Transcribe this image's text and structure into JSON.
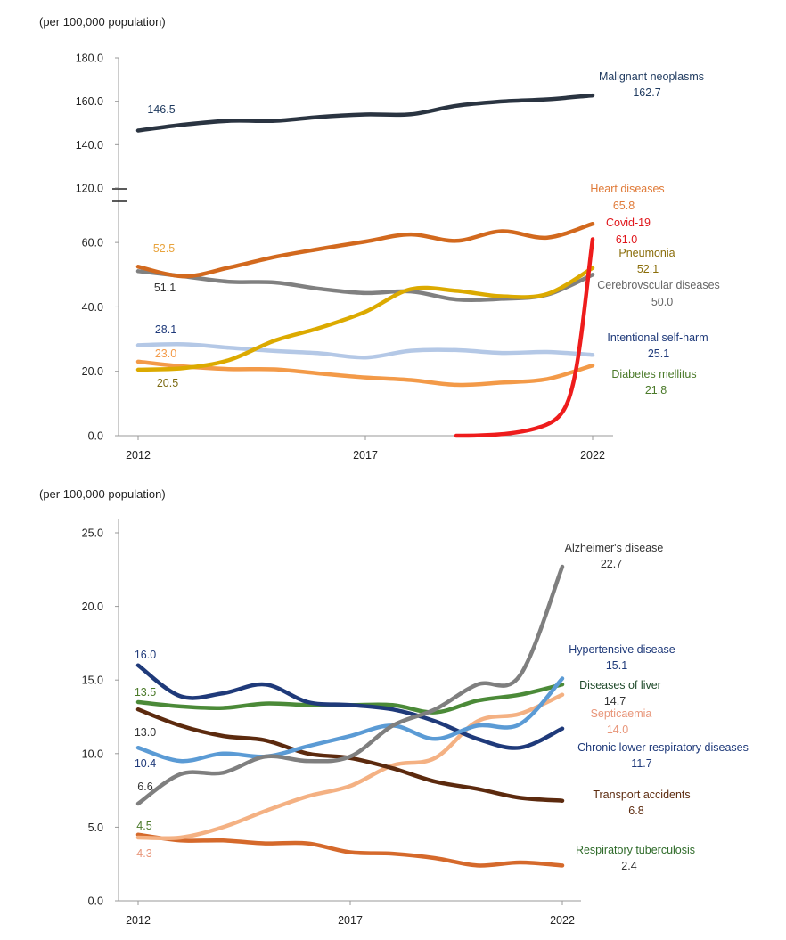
{
  "chart_data": [
    {
      "type": "line",
      "title": "",
      "ylabel": "(per 100,000 population)",
      "xlabel": "",
      "x": [
        2012,
        2013,
        2014,
        2015,
        2016,
        2017,
        2018,
        2019,
        2020,
        2021,
        2022
      ],
      "x_ticks": [
        "2012",
        "2017",
        "2022"
      ],
      "y_ticks": [
        "0.0",
        "20.0",
        "40.0",
        "60.0",
        "120.0",
        "140.0",
        "160.0",
        "180.0"
      ],
      "ylim": [
        0,
        180
      ],
      "axis_break": [
        70,
        120
      ],
      "series": [
        {
          "name": "Malignant neoplasms",
          "color": "#2a3441",
          "values": [
            146.5,
            149.2,
            151.0,
            151.0,
            152.8,
            153.9,
            154.0,
            157.9,
            159.9,
            160.9,
            162.7
          ],
          "start_label": "146.5",
          "end_label": "162.7"
        },
        {
          "name": "Heart diseases",
          "color": "#d2691e",
          "values": [
            52.5,
            49.5,
            52.2,
            55.5,
            58.0,
            60.3,
            62.5,
            60.5,
            63.5,
            61.5,
            65.8
          ],
          "start_label": "52.5",
          "end_label": "65.8"
        },
        {
          "name": "Covid-19",
          "color": "#ee1c1c",
          "values": [
            null,
            null,
            null,
            null,
            null,
            null,
            null,
            0.0,
            1.0,
            10.0,
            61.0
          ],
          "start_label": "",
          "end_label": "61.0"
        },
        {
          "name": "Pneumonia",
          "color": "#dcaa00",
          "values": [
            20.5,
            21.0,
            23.5,
            29.5,
            33.5,
            38.5,
            45.5,
            45.0,
            43.3,
            44.0,
            52.1
          ],
          "start_label": "20.5",
          "end_label": "52.1"
        },
        {
          "name": "Cerebrovscular diseases",
          "color": "#808080",
          "values": [
            51.1,
            49.5,
            47.8,
            47.6,
            45.6,
            44.3,
            44.8,
            42.3,
            42.5,
            43.8,
            50.0
          ],
          "start_label": "51.1",
          "end_label": "50.0"
        },
        {
          "name": "Intentional self-harm",
          "color": "#b4c8e6",
          "values": [
            28.1,
            28.4,
            27.3,
            26.3,
            25.6,
            24.3,
            26.4,
            26.6,
            25.7,
            26.0,
            25.1
          ],
          "start_label": "28.1",
          "end_label": "25.1"
        },
        {
          "name": "Diabetes mellitus",
          "color": "#f39a48",
          "values": [
            23.0,
            21.5,
            20.7,
            20.6,
            19.3,
            18.1,
            17.3,
            15.8,
            16.5,
            17.6,
            21.8
          ],
          "start_label": "23.0",
          "end_label": "21.8"
        }
      ]
    },
    {
      "type": "line",
      "title": "",
      "ylabel": "(per 100,000 population)",
      "xlabel": "",
      "x": [
        2012,
        2013,
        2014,
        2015,
        2016,
        2017,
        2018,
        2019,
        2020,
        2021,
        2022
      ],
      "x_ticks": [
        "2012",
        "2017",
        "2022"
      ],
      "y_ticks": [
        "0.0",
        "5.0",
        "10.0",
        "15.0",
        "20.0",
        "25.0"
      ],
      "ylim": [
        0,
        25
      ],
      "series": [
        {
          "name": "Alzheimer's disease",
          "color": "#7f7f7f",
          "values": [
            6.6,
            8.6,
            8.7,
            9.8,
            9.5,
            9.8,
            11.9,
            13.0,
            14.7,
            15.3,
            22.7
          ],
          "start_label": "6.6",
          "end_label": "22.7"
        },
        {
          "name": "Hypertensive disease",
          "color": "#5b9bd5",
          "values": [
            10.4,
            9.5,
            10.0,
            9.8,
            10.5,
            11.2,
            11.9,
            11.0,
            11.9,
            12.0,
            15.1
          ],
          "start_label": "10.4",
          "end_label": "15.1"
        },
        {
          "name": "Diseases of liver",
          "color": "#4b8a38",
          "values": [
            13.5,
            13.2,
            13.1,
            13.4,
            13.3,
            13.3,
            13.3,
            12.8,
            13.6,
            14.0,
            14.7
          ],
          "start_label": "13.5",
          "end_label": "14.7"
        },
        {
          "name": "Septicaemia",
          "color": "#f4b183",
          "values": [
            4.3,
            4.3,
            5.0,
            6.1,
            7.1,
            7.8,
            9.2,
            9.7,
            12.2,
            12.7,
            14.0
          ],
          "start_label": "4.3",
          "end_label": "14.0"
        },
        {
          "name": "Chronic lower respiratory diseases",
          "color": "#1f3a7a",
          "values": [
            16.0,
            13.9,
            14.1,
            14.7,
            13.5,
            13.3,
            13.0,
            12.2,
            11.0,
            10.4,
            11.7
          ],
          "start_label": "16.0",
          "end_label": "11.7"
        },
        {
          "name": "Transport accidents",
          "color": "#5c2a0e",
          "values": [
            13.0,
            11.9,
            11.2,
            10.9,
            10.0,
            9.7,
            9.0,
            8.1,
            7.6,
            7.0,
            6.8
          ],
          "start_label": "13.0",
          "end_label": "6.8"
        },
        {
          "name": "Respiratory tuberculosis",
          "color": "#d5692b",
          "values": [
            4.5,
            4.1,
            4.1,
            3.9,
            3.9,
            3.3,
            3.2,
            2.9,
            2.4,
            2.6,
            2.4
          ],
          "start_label": "4.5",
          "end_label": "2.4"
        }
      ]
    }
  ]
}
